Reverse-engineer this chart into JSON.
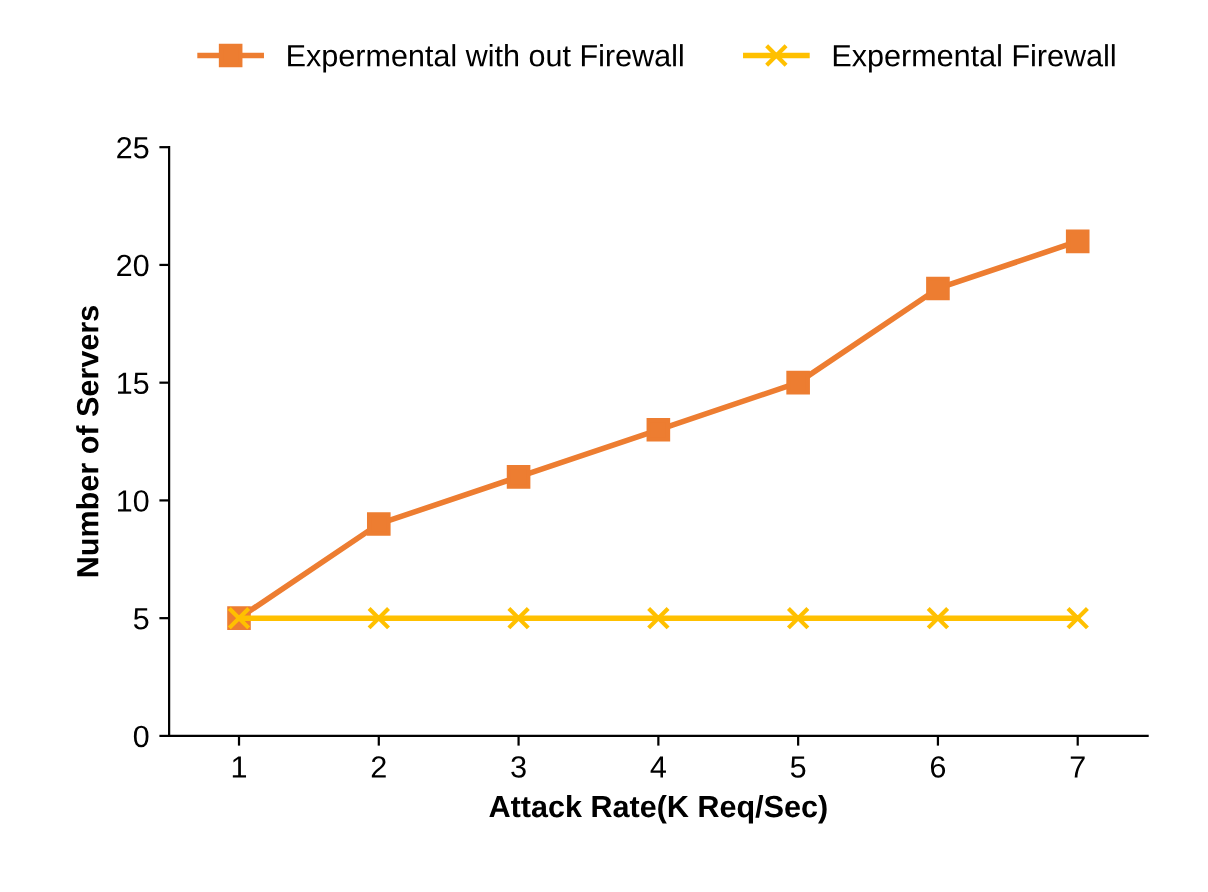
{
  "chart_data": {
    "type": "line",
    "xlabel": "Attack Rate(K Req/Sec)",
    "ylabel": "Number of Servers",
    "categories": [
      "1",
      "2",
      "3",
      "4",
      "5",
      "6",
      "7"
    ],
    "series": [
      {
        "name": "Expermental with out Firewall",
        "color": "#ed7d31",
        "marker": "square",
        "values": [
          5,
          9,
          11,
          13,
          15,
          19,
          21
        ]
      },
      {
        "name": "Expermental Firewall",
        "color": "#ffc000",
        "marker": "cross",
        "values": [
          5,
          5,
          5,
          5,
          5,
          5,
          5
        ]
      }
    ],
    "ylim": [
      0,
      25
    ],
    "yticks": [
      0,
      5,
      10,
      15,
      20,
      25
    ],
    "grid": false,
    "legend": "top"
  }
}
